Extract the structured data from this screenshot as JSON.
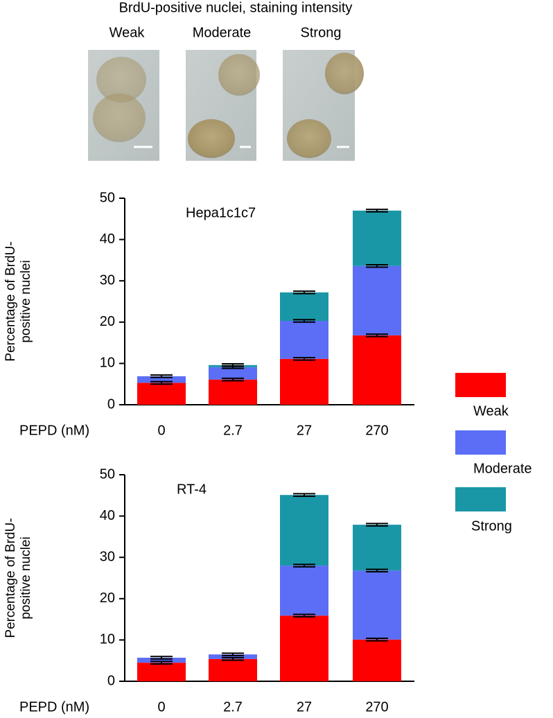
{
  "image_panel": {
    "title": "BrdU-positive nuclei, staining intensity",
    "labels": [
      "Weak",
      "Moderate",
      "Strong"
    ]
  },
  "chart_data": [
    {
      "type": "stacked-bar",
      "title": "Hepa1c1c7",
      "x_label": "PEPD (nM)",
      "y_label": [
        "Percentage of BrdU-",
        "positive nuclei"
      ],
      "categories": [
        "0",
        "2.7",
        "27",
        "270"
      ],
      "ylim": [
        0,
        50
      ],
      "yticks": [
        0,
        10,
        20,
        30,
        40,
        50
      ],
      "grid": false,
      "legend": "right",
      "series": [
        {
          "name": "Weak",
          "color": "#ff0000",
          "values": [
            5.3,
            6.1,
            11.1,
            16.8
          ],
          "errors": [
            0.3,
            0.3,
            0.3,
            0.3
          ]
        },
        {
          "name": "Moderate",
          "color": "#5b6ef5",
          "values": [
            1.6,
            3.0,
            9.2,
            16.8
          ],
          "errors": [
            0.3,
            0.3,
            0.3,
            0.3
          ]
        },
        {
          "name": "Strong",
          "color": "#1a97a7",
          "values": [
            0,
            0.5,
            6.9,
            13.4
          ],
          "errors": [
            0,
            0.3,
            0.3,
            0.3
          ]
        }
      ]
    },
    {
      "type": "stacked-bar",
      "title": "RT-4",
      "x_label": "PEPD (nM)",
      "y_label": [
        "Percentage of BrdU-",
        "positive nuclei"
      ],
      "categories": [
        "0",
        "2.7",
        "27",
        "270"
      ],
      "ylim": [
        0,
        50
      ],
      "yticks": [
        0,
        10,
        20,
        30,
        40,
        50
      ],
      "grid": false,
      "series": [
        {
          "name": "Weak",
          "color": "#ff0000",
          "values": [
            4.5,
            5.4,
            15.9,
            10.1
          ],
          "errors": [
            0.3,
            0.3,
            0.3,
            0.3
          ]
        },
        {
          "name": "Moderate",
          "color": "#5b6ef5",
          "values": [
            1.2,
            1.1,
            12.1,
            16.7
          ],
          "errors": [
            0.3,
            0.3,
            0.3,
            0.3
          ]
        },
        {
          "name": "Strong",
          "color": "#1a97a7",
          "values": [
            0,
            0,
            17.1,
            11.1
          ],
          "errors": [
            0,
            0,
            0.3,
            0.3
          ]
        }
      ]
    }
  ]
}
